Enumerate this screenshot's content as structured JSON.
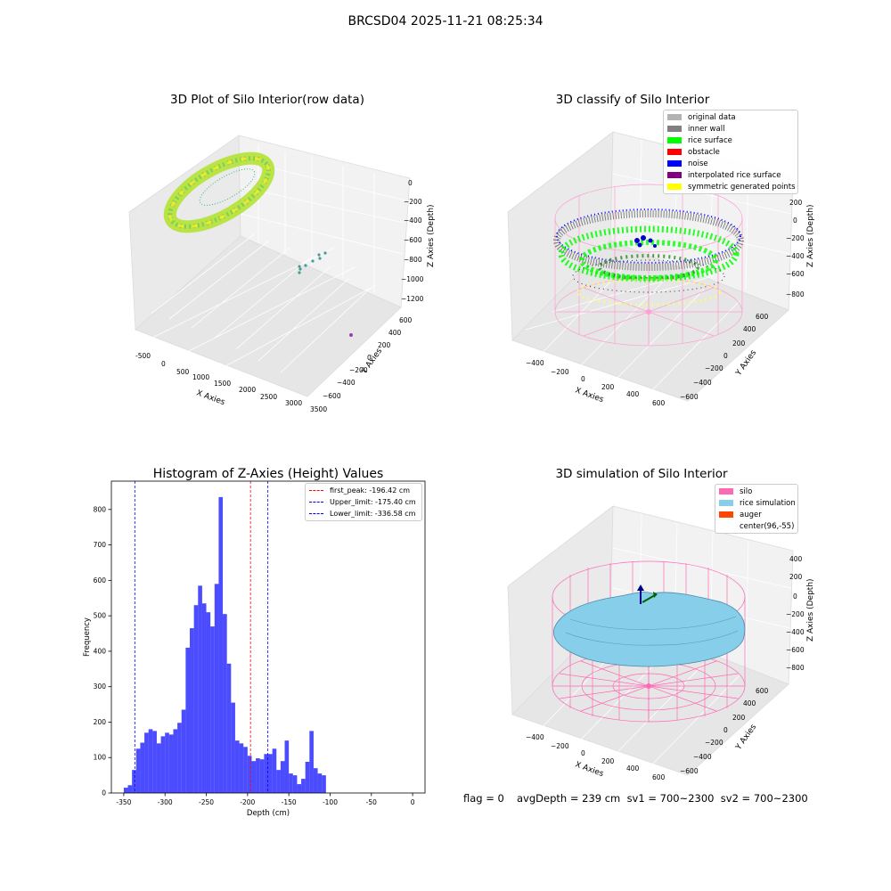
{
  "suptitle": "BRCSD04 2025-11-21 08:25:34",
  "panels": {
    "raw": {
      "title": "3D Plot of Silo Interior(row data)",
      "xlabel": "X Axies",
      "ylabel": "Y Axies",
      "zlabel": "Z Axies (Depth)",
      "xticks": [
        "-500",
        "0",
        "500",
        "1000",
        "1500",
        "2000",
        "2500",
        "3000",
        "3500"
      ],
      "yticks": [
        "600",
        "400",
        "200",
        "0",
        "−200",
        "−400",
        "−600"
      ],
      "zticks": [
        "0",
        "−200",
        "−400",
        "−600",
        "−800",
        "−1000",
        "−1200"
      ]
    },
    "classify": {
      "title": "3D classify of Silo Interior",
      "xlabel": "X Axies",
      "ylabel": "Y Axies",
      "zlabel": "Z Axies (Depth)",
      "xticks": [
        "−400",
        "−200",
        "0",
        "200",
        "400",
        "600"
      ],
      "yticks": [
        "600",
        "400",
        "200",
        "0",
        "−200",
        "−400",
        "−600"
      ],
      "zticks": [
        "200",
        "0",
        "−200",
        "−400",
        "−600",
        "−800"
      ],
      "legend": [
        {
          "label": "original data",
          "color": "#b3b3b3"
        },
        {
          "label": "inner wall",
          "color": "#808080"
        },
        {
          "label": "rice surface",
          "color": "#00ff00"
        },
        {
          "label": "obstacle",
          "color": "#ff0000"
        },
        {
          "label": "noise",
          "color": "#0000ff"
        },
        {
          "label": "interpolated rice surface",
          "color": "#800080"
        },
        {
          "label": "symmetric generated points",
          "color": "#ffff00"
        }
      ]
    },
    "sim": {
      "title": "3D simulation of Silo Interior",
      "xlabel": "X Axies",
      "ylabel": "Y Axies",
      "zlabel": "Z Axies (Depth)",
      "xticks": [
        "−400",
        "−200",
        "0",
        "200",
        "400",
        "600"
      ],
      "yticks": [
        "600",
        "400",
        "200",
        "0",
        "−200",
        "−400",
        "−600"
      ],
      "zticks": [
        "400",
        "200",
        "0",
        "−200",
        "−400",
        "−600",
        "−800"
      ],
      "legend": [
        {
          "label": "silo",
          "color": "#ff69b4"
        },
        {
          "label": "rice simulation",
          "color": "#87ceeb"
        },
        {
          "label": "auger",
          "color": "#ff4500"
        },
        {
          "label": "center(96,-55)",
          "color": ""
        }
      ]
    }
  },
  "footer": {
    "flag": "flag = 0",
    "stats": "avgDepth = 239 cm  sv1 = 700~2300  sv2 = 700~2300"
  },
  "chart_data": [
    {
      "type": "bar",
      "title": "Histogram of Z-Axies (Height) Values",
      "xlabel": "Depth (cm)",
      "ylabel": "Frequency",
      "xlim": [
        -365,
        15
      ],
      "ylim": [
        0,
        880
      ],
      "xticks": [
        -350,
        -300,
        -250,
        -200,
        -150,
        -100,
        -50,
        0
      ],
      "yticks": [
        0,
        100,
        200,
        300,
        400,
        500,
        600,
        700,
        800
      ],
      "bar_color": "#0000ff",
      "bar_width": 5.0,
      "bin_starts": [
        -355,
        -350,
        -345,
        -340,
        -335,
        -330,
        -325,
        -320,
        -315,
        -310,
        -305,
        -300,
        -295,
        -290,
        -285,
        -280,
        -275,
        -270,
        -265,
        -260,
        -255,
        -250,
        -245,
        -240,
        -235,
        -230,
        -225,
        -220,
        -215,
        -210,
        -205,
        -200,
        -195,
        -190,
        -185,
        -180,
        -175,
        -170,
        -165,
        -160,
        -155,
        -150,
        -145,
        -140,
        -135,
        -130,
        -125,
        -120,
        -115,
        -110,
        -105,
        -100,
        -95,
        -90,
        -85,
        -80,
        -75,
        -70,
        -65,
        -60,
        -55,
        -50,
        -45,
        -40,
        -35,
        -30,
        -25,
        -20,
        -15,
        -10,
        -5,
        0
      ],
      "values": [
        0,
        15,
        22,
        65,
        125,
        142,
        170,
        180,
        175,
        140,
        160,
        170,
        165,
        180,
        198,
        235,
        410,
        465,
        530,
        585,
        535,
        510,
        470,
        590,
        835,
        505,
        365,
        255,
        148,
        140,
        130,
        105,
        90,
        98,
        95,
        110,
        110,
        125,
        65,
        90,
        148,
        55,
        50,
        25,
        40,
        88,
        175,
        70,
        55,
        50,
        0,
        0,
        0,
        0,
        0,
        0,
        0,
        0,
        0,
        0,
        0,
        0,
        0,
        0,
        0,
        0,
        0,
        0,
        0,
        0,
        0,
        0
      ],
      "vlines": [
        {
          "label": "first_peak: -196.42 cm",
          "x": -196.42,
          "color": "#ff0000"
        },
        {
          "label": "Upper_limit: -175.40 cm",
          "x": -175.4,
          "color": "#0000ff"
        },
        {
          "label": "Lower_limit: -336.58 cm",
          "x": -336.58,
          "color": "#0000ff"
        }
      ]
    }
  ]
}
